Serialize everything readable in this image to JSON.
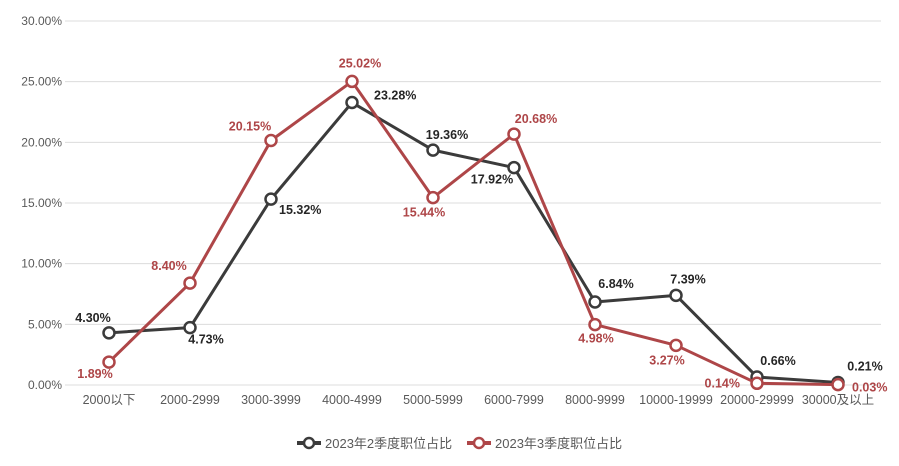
{
  "chart_data": {
    "type": "line",
    "title": "",
    "categories": [
      "2000以下",
      "2000-2999",
      "3000-3999",
      "4000-4999",
      "5000-5999",
      "6000-7999",
      "8000-9999",
      "10000-19999",
      "20000-29999",
      "30000及以上"
    ],
    "series": [
      {
        "name": "2023年2季度职位占比",
        "color": "#3b3b3b",
        "label_color": "#262626",
        "values": [
          4.3,
          4.73,
          15.32,
          23.28,
          19.36,
          17.92,
          6.84,
          7.39,
          0.66,
          0.21
        ],
        "labels": [
          "4.30%",
          "4.73%",
          "15.32%",
          "23.28%",
          "19.36%",
          "17.92%",
          "6.84%",
          "7.39%",
          "0.66%",
          "0.21%"
        ],
        "label_pos": [
          {
            "dx": -16,
            "dy": -11,
            "anchor": "middle"
          },
          {
            "dx": 16,
            "dy": 16,
            "anchor": "middle"
          },
          {
            "dx": 8,
            "dy": 15,
            "anchor": "start"
          },
          {
            "dx": 22,
            "dy": -3,
            "anchor": "start"
          },
          {
            "dx": 14,
            "dy": -11,
            "anchor": "middle"
          },
          {
            "dx": -22,
            "dy": 16,
            "anchor": "middle"
          },
          {
            "dx": 21,
            "dy": -14,
            "anchor": "middle"
          },
          {
            "dx": 12,
            "dy": -12,
            "anchor": "middle"
          },
          {
            "dx": 21,
            "dy": -12,
            "anchor": "middle"
          },
          {
            "dx": 27,
            "dy": -12,
            "anchor": "middle"
          }
        ]
      },
      {
        "name": "2023年3季度职位占比",
        "color": "#ae4648",
        "label_color": "#ae4648",
        "values": [
          1.89,
          8.4,
          20.15,
          25.02,
          15.44,
          20.68,
          4.98,
          3.27,
          0.14,
          0.03
        ],
        "labels": [
          "1.89%",
          "8.40%",
          "20.15%",
          "25.02%",
          "15.44%",
          "20.68%",
          "4.98%",
          "3.27%",
          "0.14%",
          "0.03%"
        ],
        "label_pos": [
          {
            "dx": -14,
            "dy": 16,
            "anchor": "middle"
          },
          {
            "dx": -21,
            "dy": -13,
            "anchor": "middle"
          },
          {
            "dx": -21,
            "dy": -10,
            "anchor": "middle"
          },
          {
            "dx": 8,
            "dy": -14,
            "anchor": "middle"
          },
          {
            "dx": -9,
            "dy": 19,
            "anchor": "middle"
          },
          {
            "dx": 22,
            "dy": -11,
            "anchor": "middle"
          },
          {
            "dx": 1,
            "dy": 18,
            "anchor": "middle"
          },
          {
            "dx": -9,
            "dy": 19,
            "anchor": "middle"
          },
          {
            "dx": -17,
            "dy": 4,
            "anchor": "end"
          },
          {
            "dx": 14,
            "dy": 7,
            "anchor": "start"
          }
        ]
      }
    ],
    "y_axis": {
      "min": 0,
      "max": 30,
      "step": 5,
      "tick_labels": [
        "0.00%",
        "5.00%",
        "10.00%",
        "15.00%",
        "20.00%",
        "25.00%",
        "30.00%"
      ]
    },
    "grid": true,
    "legend_position": "bottom",
    "colors": {
      "gridline": "#dcdcdc",
      "axis_text": "#595959",
      "background": "#ffffff"
    }
  }
}
